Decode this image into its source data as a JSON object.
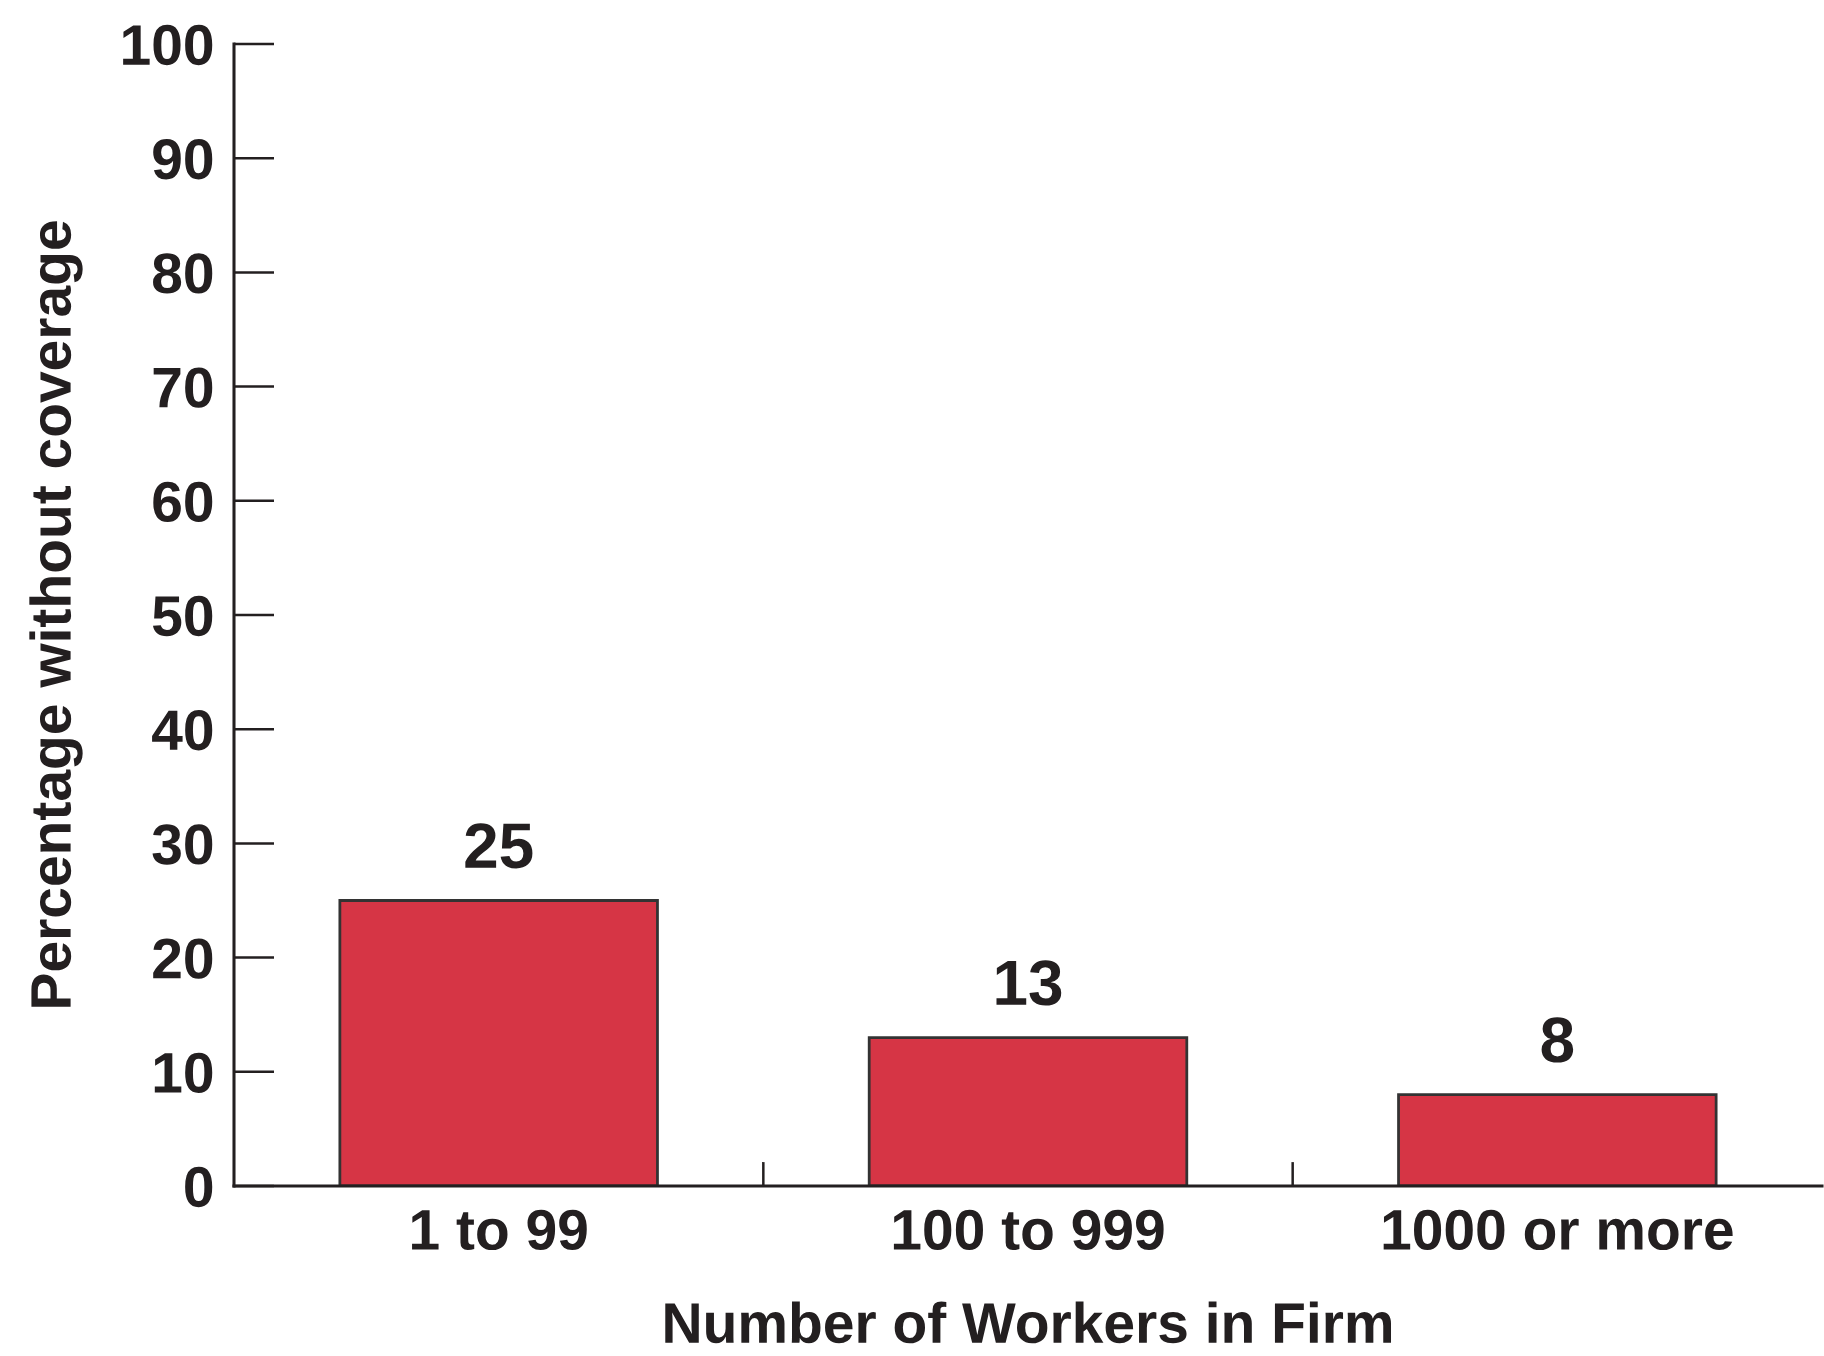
{
  "chart_data": {
    "type": "bar",
    "xlabel": "Number of Workers in Firm",
    "ylabel": "Percentage without coverage",
    "categories": [
      "1 to 99",
      "100 to 999",
      "1000 or more"
    ],
    "values": [
      25,
      13,
      8
    ],
    "color": "#d63545",
    "ylim": [
      0,
      100
    ],
    "yticks": [
      0,
      10,
      20,
      30,
      40,
      50,
      60,
      70,
      80,
      90,
      100
    ],
    "data_labels": true
  }
}
